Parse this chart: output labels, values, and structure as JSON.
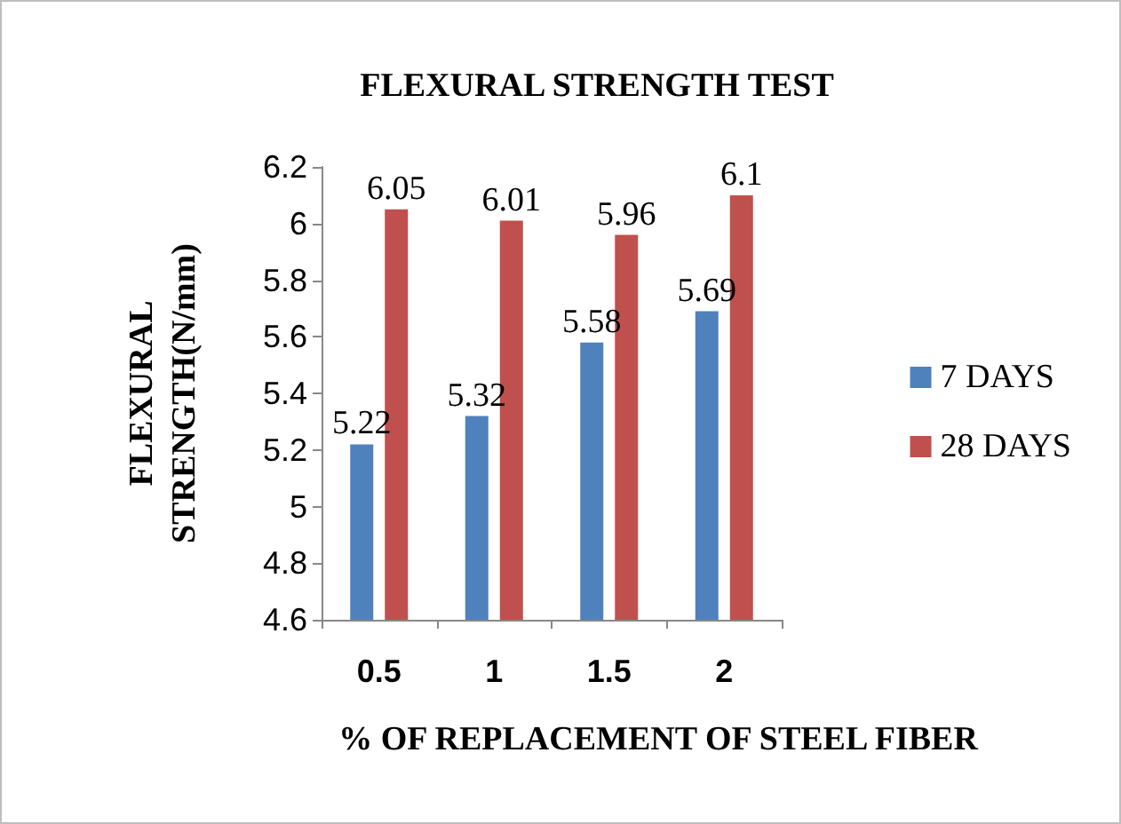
{
  "chart_data": {
    "type": "bar",
    "title": "FLEXURAL STRENGTH TEST",
    "xlabel": "% OF REPLACEMENT OF STEEL FIBER",
    "ylabel": "FLEXURAL STRENGTH(N/mm)",
    "categories": [
      "0.5",
      "1",
      "1.5",
      "2"
    ],
    "series": [
      {
        "name": "7 DAYS",
        "color": "#4f81bd",
        "values": [
          5.22,
          5.32,
          5.58,
          5.69
        ]
      },
      {
        "name": "28 DAYS",
        "color": "#c0504d",
        "values": [
          6.05,
          6.01,
          5.96,
          6.1
        ]
      }
    ],
    "ylim": [
      4.6,
      6.2
    ],
    "yticks": [
      4.6,
      4.8,
      5,
      5.2,
      5.4,
      5.6,
      5.8,
      6,
      6.2
    ],
    "data_labels": true,
    "legend": "right",
    "grid": false
  }
}
